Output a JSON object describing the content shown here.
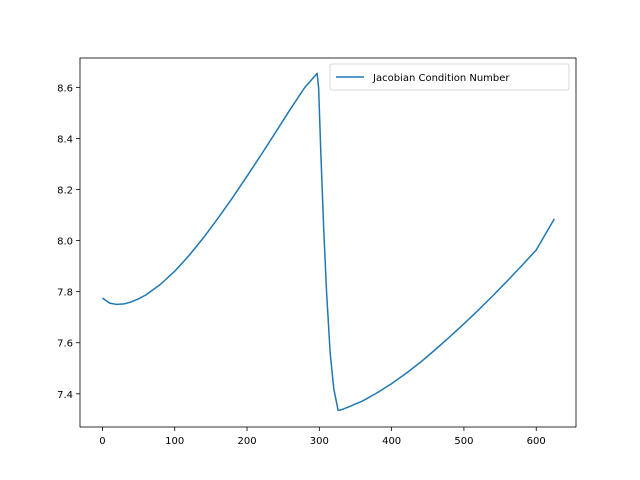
{
  "chart_data": {
    "type": "line",
    "title": "",
    "xlabel": "",
    "ylabel": "",
    "xlim": [
      -31,
      655
    ],
    "ylim": [
      7.27,
      8.715
    ],
    "x_ticks": [
      0,
      100,
      200,
      300,
      400,
      500,
      600
    ],
    "y_ticks": [
      7.4,
      7.6,
      7.8,
      8.0,
      8.2,
      8.4,
      8.6
    ],
    "x_tick_labels": [
      "0",
      "100",
      "200",
      "300",
      "400",
      "500",
      "600"
    ],
    "y_tick_labels": [
      "7.4",
      "7.6",
      "7.8",
      "8.0",
      "8.2",
      "8.4",
      "8.6"
    ],
    "grid": false,
    "legend_position": "upper right",
    "series": [
      {
        "name": "Jacobian Condition Number",
        "color": "#1f77b4",
        "x": [
          0,
          10,
          20,
          30,
          40,
          50,
          60,
          80,
          100,
          120,
          140,
          160,
          180,
          200,
          220,
          240,
          260,
          280,
          297,
          299,
          302,
          306,
          310,
          315,
          320,
          326,
          330,
          340,
          360,
          380,
          400,
          420,
          440,
          460,
          480,
          500,
          520,
          540,
          560,
          580,
          600,
          625
        ],
        "y": [
          7.775,
          7.755,
          7.75,
          7.752,
          7.76,
          7.772,
          7.787,
          7.828,
          7.88,
          7.942,
          8.012,
          8.088,
          8.168,
          8.252,
          8.338,
          8.426,
          8.515,
          8.6,
          8.655,
          8.6,
          8.35,
          8.05,
          7.8,
          7.56,
          7.42,
          7.335,
          7.337,
          7.348,
          7.372,
          7.404,
          7.44,
          7.48,
          7.524,
          7.572,
          7.622,
          7.674,
          7.728,
          7.784,
          7.842,
          7.902,
          7.963,
          8.085
        ]
      }
    ]
  }
}
